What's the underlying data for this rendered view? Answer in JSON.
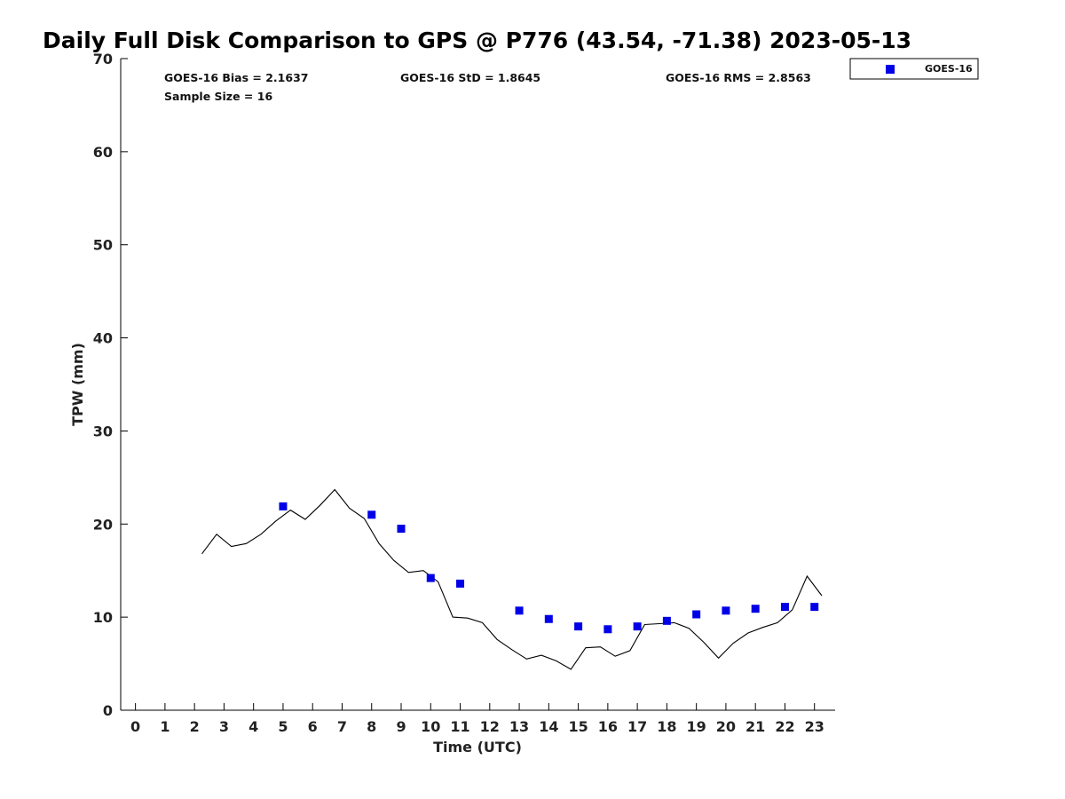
{
  "chart_data": {
    "type": "scatter",
    "title": "Daily Full Disk Comparison to GPS @ P776 (43.54, -71.38) 2023-05-13",
    "xlabel": "Time (UTC)",
    "ylabel": "TPW (mm)",
    "xlim": [
      -0.5,
      23.7
    ],
    "ylim": [
      0,
      70
    ],
    "xticks": [
      0,
      1,
      2,
      3,
      4,
      5,
      6,
      7,
      8,
      9,
      10,
      11,
      12,
      13,
      14,
      15,
      16,
      17,
      18,
      19,
      20,
      21,
      22,
      23
    ],
    "yticks": [
      0,
      10,
      20,
      30,
      40,
      50,
      60,
      70
    ],
    "grid": false,
    "legend_position": "top-right, outside plot",
    "stats": {
      "bias": "GOES-16 Bias = 2.1637",
      "std": "GOES-16 StD = 1.8645",
      "rms": "GOES-16 RMS = 2.8563",
      "sample": "Sample Size = 16"
    },
    "series": [
      {
        "name": "GOES-16",
        "kind": "scatter",
        "marker": "square",
        "color": "#0000e6",
        "x": [
          5,
          8,
          9,
          10,
          11,
          13,
          14,
          15,
          16,
          17,
          18,
          19,
          20,
          21,
          22,
          23
        ],
        "y": [
          21.9,
          21.0,
          19.5,
          14.2,
          13.6,
          10.7,
          9.8,
          9.0,
          8.7,
          9.0,
          9.6,
          10.3,
          10.7,
          10.9,
          11.1,
          11.1
        ]
      },
      {
        "kind": "line",
        "color": "#000000",
        "x": [
          2.25,
          2.75,
          3.25,
          3.75,
          4.25,
          4.75,
          5.25,
          5.75,
          6.25,
          6.75,
          7.25,
          7.75,
          8.25,
          8.75,
          9.25,
          9.75,
          10.25,
          10.75,
          11.25,
          11.75,
          12.25,
          12.75,
          13.25,
          13.75,
          14.25,
          14.75,
          15.25,
          15.75,
          16.25,
          16.75,
          17.25,
          17.75,
          18.25,
          18.75,
          19.25,
          19.75,
          20.25,
          20.75,
          21.25,
          21.75,
          22.25,
          22.75,
          23.25
        ],
        "y": [
          16.8,
          18.9,
          17.6,
          17.9,
          18.9,
          20.3,
          21.5,
          20.5,
          22.0,
          23.7,
          21.7,
          20.6,
          17.9,
          16.1,
          14.8,
          15.0,
          13.8,
          10.0,
          9.9,
          9.4,
          7.6,
          6.5,
          5.5,
          5.9,
          5.3,
          4.4,
          6.7,
          6.8,
          5.8,
          6.4,
          9.2,
          9.3,
          9.4,
          8.8,
          7.3,
          5.6,
          7.2,
          8.3,
          8.9,
          9.4,
          10.8,
          14.4,
          12.3
        ]
      }
    ]
  }
}
